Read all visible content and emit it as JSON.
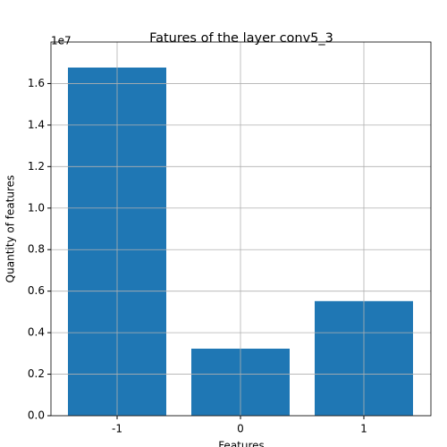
{
  "chart_data": {
    "type": "bar",
    "title": "Fatures of the layer conv5_3",
    "x_label": "Features",
    "y_label": "Quantity of features",
    "y_offset_label": "1e7",
    "categories": [
      "-1",
      "0",
      "1"
    ],
    "values": [
      16770000,
      3230000,
      5520000
    ],
    "color": "#1f77b4",
    "ylim": [
      0,
      18000000
    ],
    "yticks": [
      {
        "value": 0,
        "label": "0.0"
      },
      {
        "value": 2000000,
        "label": "0.2"
      },
      {
        "value": 4000000,
        "label": "0.4"
      },
      {
        "value": 6000000,
        "label": "0.6"
      },
      {
        "value": 8000000,
        "label": "0.8"
      },
      {
        "value": 10000000,
        "label": "1.0"
      },
      {
        "value": 12000000,
        "label": "1.2"
      },
      {
        "value": 14000000,
        "label": "1.4"
      },
      {
        "value": 16000000,
        "label": "1.6"
      }
    ],
    "grid": true
  }
}
